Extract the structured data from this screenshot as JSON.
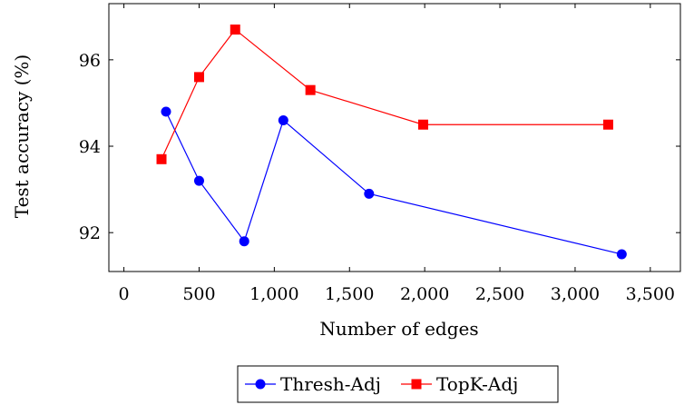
{
  "chart_data": {
    "type": "line",
    "title": "",
    "xlabel": "Number of edges",
    "ylabel": "Test accuracy (%)",
    "xlim": [
      -100,
      3700
    ],
    "ylim": [
      91.1,
      97.3
    ],
    "xticks": [
      0,
      500,
      1000,
      1500,
      2000,
      2500,
      3000,
      3500
    ],
    "xtick_labels": [
      "0",
      "500",
      "1,000",
      "1,500",
      "2,000",
      "2,500",
      "3,000",
      "3,500"
    ],
    "yticks": [
      92,
      94,
      96
    ],
    "ytick_labels": [
      "92",
      "94",
      "96"
    ],
    "grid": false,
    "legend_position": "bottom-center",
    "series": [
      {
        "name": "Thresh-Adj",
        "color": "#0000ff",
        "marker": "circle",
        "x": [
          280,
          500,
          800,
          1060,
          1630,
          3310
        ],
        "y": [
          94.8,
          93.2,
          91.8,
          94.6,
          92.9,
          91.5
        ]
      },
      {
        "name": "TopK-Adj",
        "color": "#ff0000",
        "marker": "square",
        "x": [
          250,
          500,
          740,
          1240,
          1990,
          3220
        ],
        "y": [
          93.7,
          95.6,
          96.7,
          95.3,
          94.5,
          94.5
        ]
      }
    ]
  }
}
